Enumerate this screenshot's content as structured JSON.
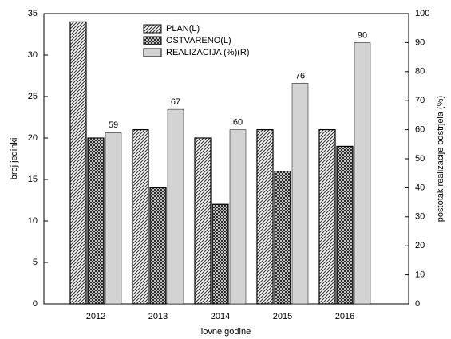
{
  "chart_data": {
    "type": "bar",
    "categories": [
      "2012",
      "2013",
      "2014",
      "2015",
      "2016"
    ],
    "x_label": "lovne godine",
    "y_label": "broj jedinki",
    "y2_label": "postotak realizacije odstrjela (%)",
    "ylim": [
      0,
      35
    ],
    "yticks": [
      0,
      5,
      10,
      15,
      20,
      25,
      30,
      35
    ],
    "y2lim": [
      0,
      100
    ],
    "y2ticks": [
      0,
      10,
      20,
      30,
      40,
      50,
      60,
      70,
      80,
      90,
      100
    ],
    "series": [
      {
        "name": "PLAN(L)",
        "color": "#333333",
        "hatch": "diagonal",
        "values": [
          34,
          21,
          20,
          21,
          21
        ]
      },
      {
        "name": "OSTVARENO(L)",
        "color": "#222222",
        "hatch": "cross",
        "values": [
          20,
          14,
          12,
          16,
          19
        ]
      },
      {
        "name": "REALIZACIJA (%)(R)",
        "color": "#d3d3d3",
        "hatch": "solid",
        "axis": "y2",
        "values": [
          59,
          67,
          60,
          76,
          90
        ]
      }
    ]
  }
}
